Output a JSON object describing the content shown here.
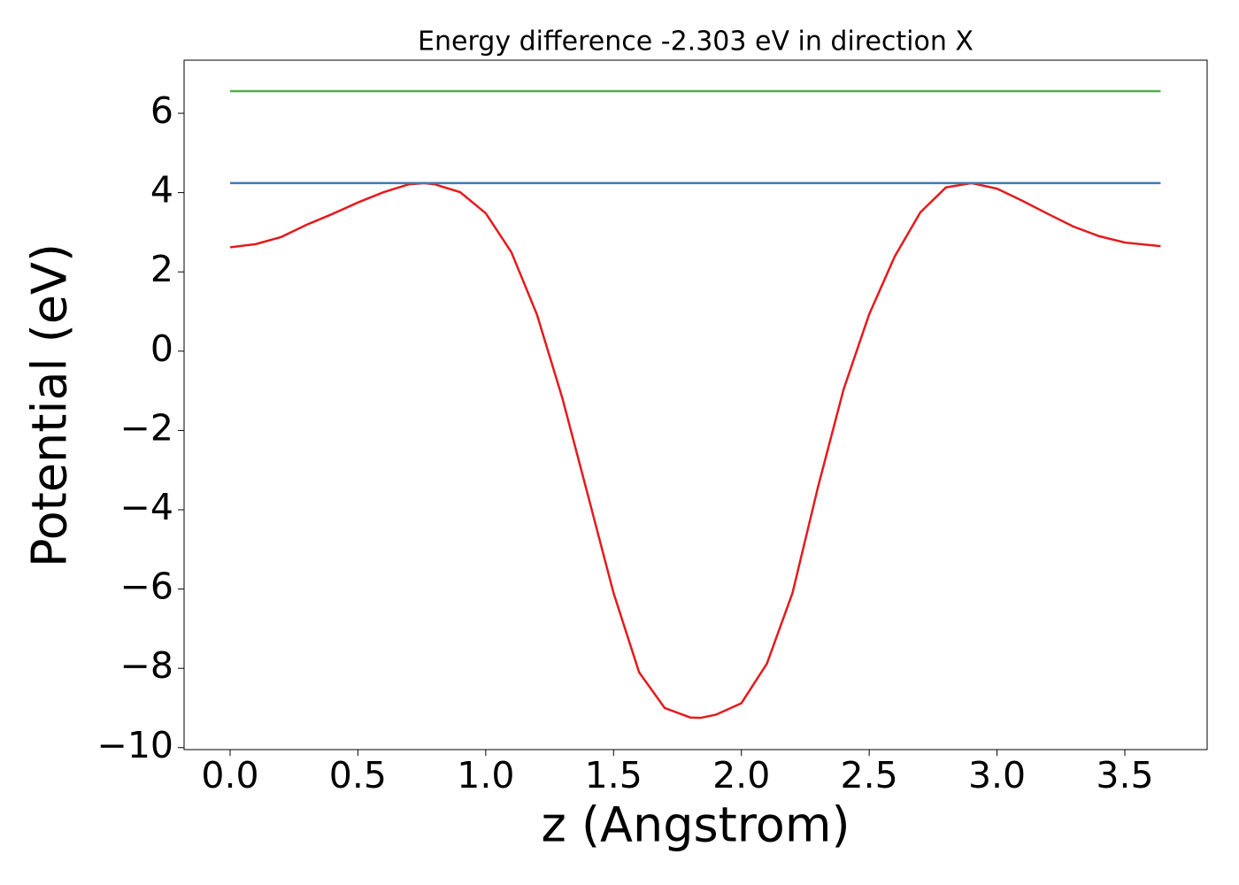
{
  "chart_data": {
    "type": "line",
    "title": "Energy difference -2.303 eV in direction X",
    "xlabel": "z (Angstrom)",
    "ylabel": "Potential (eV)",
    "xlim": [
      -0.18,
      3.822
    ],
    "ylim": [
      -10.05,
      7.34
    ],
    "xticks": [
      {
        "value": 0,
        "label": "0.0"
      },
      0.5,
      {
        "value": 1,
        "label": "1.0"
      },
      1.5,
      {
        "value": 2,
        "label": "2.0"
      },
      2.5,
      {
        "value": 3,
        "label": "3.0"
      },
      3.5
    ],
    "yticks": [
      {
        "value": -10,
        "label": "−10"
      },
      {
        "value": -8,
        "label": "−8"
      },
      {
        "value": -6,
        "label": "−6"
      },
      {
        "value": -4,
        "label": "−4"
      },
      {
        "value": -2,
        "label": "−2"
      },
      0,
      2,
      4,
      6
    ],
    "series": [
      {
        "color": "#e41a1c",
        "x": [
          0,
          0.1,
          0.2,
          0.3,
          0.4,
          0.5,
          0.6,
          0.7,
          0.76,
          0.8,
          0.9,
          1.0,
          1.1,
          1.2,
          1.3,
          1.4,
          1.5,
          1.6,
          1.7,
          1.8,
          1.84,
          1.9,
          2.0,
          2.1,
          2.2,
          2.3,
          2.4,
          2.5,
          2.6,
          2.7,
          2.8,
          2.9,
          3.0,
          3.1,
          3.2,
          3.3,
          3.4,
          3.5,
          3.64
        ],
        "values": [
          2.62,
          2.7,
          2.88,
          3.19,
          3.46,
          3.75,
          4.01,
          4.21,
          4.24,
          4.21,
          4.01,
          3.48,
          2.5,
          0.93,
          -1.19,
          -3.64,
          -6.1,
          -8.1,
          -9.0,
          -9.24,
          -9.25,
          -9.17,
          -8.88,
          -7.88,
          -6.1,
          -3.42,
          -0.96,
          0.93,
          2.39,
          3.5,
          4.13,
          4.24,
          4.1,
          3.79,
          3.46,
          3.14,
          2.9,
          2.74,
          2.65
        ]
      },
      {
        "color": "#377eb8",
        "x": [
          0,
          3.64
        ],
        "values": [
          4.24,
          4.24
        ]
      },
      {
        "color": "#4daf4a",
        "x": [
          0,
          3.64
        ],
        "values": [
          6.56,
          6.56
        ]
      }
    ]
  }
}
